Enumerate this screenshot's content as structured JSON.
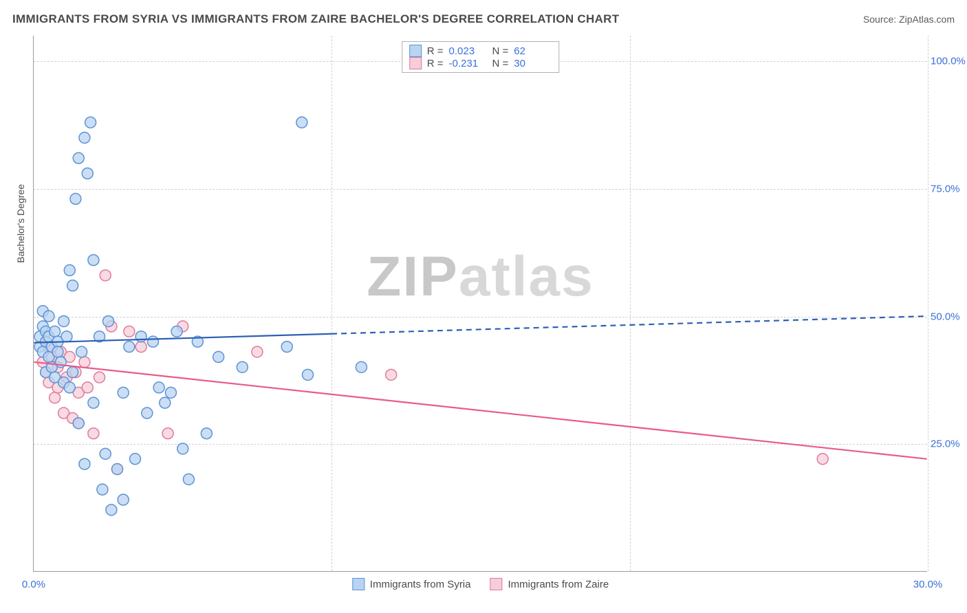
{
  "header": {
    "title": "IMMIGRANTS FROM SYRIA VS IMMIGRANTS FROM ZAIRE BACHELOR'S DEGREE CORRELATION CHART",
    "source": "Source: ZipAtlas.com"
  },
  "chart": {
    "type": "scatter",
    "ylabel": "Bachelor's Degree",
    "xlim": [
      0,
      30
    ],
    "ylim": [
      0,
      105
    ],
    "xticks": [
      {
        "pos": 0,
        "label": "0.0%"
      },
      {
        "pos": 10,
        "label": ""
      },
      {
        "pos": 20,
        "label": ""
      },
      {
        "pos": 30,
        "label": "30.0%"
      }
    ],
    "yticks": [
      {
        "pos": 25,
        "label": "25.0%"
      },
      {
        "pos": 50,
        "label": "50.0%"
      },
      {
        "pos": 75,
        "label": "75.0%"
      },
      {
        "pos": 100,
        "label": "100.0%"
      }
    ],
    "grid_color": "#d0d0d0",
    "background_color": "#ffffff",
    "marker_radius": 8,
    "marker_stroke_width": 1.5,
    "series": {
      "syria": {
        "label": "Immigrants from Syria",
        "fill": "#b9d3f0",
        "stroke": "#5a93d6",
        "stats": {
          "R": "0.023",
          "N": "62"
        },
        "points": [
          [
            0.2,
            44
          ],
          [
            0.2,
            46
          ],
          [
            0.3,
            43
          ],
          [
            0.3,
            48
          ],
          [
            0.3,
            51
          ],
          [
            0.4,
            39
          ],
          [
            0.4,
            45
          ],
          [
            0.4,
            47
          ],
          [
            0.5,
            42
          ],
          [
            0.5,
            46
          ],
          [
            0.5,
            50
          ],
          [
            0.6,
            40
          ],
          [
            0.6,
            44
          ],
          [
            0.7,
            38
          ],
          [
            0.7,
            47
          ],
          [
            0.8,
            45
          ],
          [
            0.8,
            43
          ],
          [
            0.9,
            41
          ],
          [
            1.0,
            37
          ],
          [
            1.0,
            49
          ],
          [
            1.1,
            46
          ],
          [
            1.2,
            36
          ],
          [
            1.2,
            59
          ],
          [
            1.3,
            39
          ],
          [
            1.3,
            56
          ],
          [
            1.4,
            73
          ],
          [
            1.5,
            29
          ],
          [
            1.5,
            81
          ],
          [
            1.6,
            43
          ],
          [
            1.7,
            21
          ],
          [
            1.7,
            85
          ],
          [
            1.8,
            78
          ],
          [
            1.9,
            88
          ],
          [
            2.0,
            33
          ],
          [
            2.0,
            61
          ],
          [
            2.2,
            46
          ],
          [
            2.3,
            16
          ],
          [
            2.4,
            23
          ],
          [
            2.5,
            49
          ],
          [
            2.6,
            12
          ],
          [
            2.8,
            20
          ],
          [
            3.0,
            35
          ],
          [
            3.0,
            14
          ],
          [
            3.2,
            44
          ],
          [
            3.4,
            22
          ],
          [
            3.6,
            46
          ],
          [
            3.8,
            31
          ],
          [
            4.0,
            45
          ],
          [
            4.2,
            36
          ],
          [
            4.4,
            33
          ],
          [
            4.6,
            35
          ],
          [
            4.8,
            47
          ],
          [
            5.0,
            24
          ],
          [
            5.2,
            18
          ],
          [
            5.5,
            45
          ],
          [
            5.8,
            27
          ],
          [
            6.2,
            42
          ],
          [
            7.0,
            40
          ],
          [
            8.5,
            44
          ],
          [
            9.0,
            88
          ],
          [
            9.2,
            38.5
          ],
          [
            11.0,
            40
          ]
        ],
        "trend": {
          "x1": 0,
          "y1": 44.8,
          "x2": 30,
          "y2": 50,
          "solid_until_x": 10,
          "color": "#2d5fb3",
          "width": 2.2
        }
      },
      "zaire": {
        "label": "Immigrants from Zaire",
        "fill": "#f6cdd8",
        "stroke": "#e07a9a",
        "stats": {
          "R": "-0.231",
          "N": "30"
        },
        "points": [
          [
            0.3,
            41
          ],
          [
            0.4,
            39
          ],
          [
            0.5,
            44
          ],
          [
            0.5,
            37
          ],
          [
            0.6,
            42
          ],
          [
            0.7,
            34
          ],
          [
            0.8,
            40
          ],
          [
            0.8,
            36
          ],
          [
            0.9,
            43
          ],
          [
            1.0,
            31
          ],
          [
            1.1,
            38
          ],
          [
            1.2,
            42
          ],
          [
            1.3,
            30
          ],
          [
            1.4,
            39
          ],
          [
            1.5,
            35
          ],
          [
            1.5,
            29
          ],
          [
            1.7,
            41
          ],
          [
            1.8,
            36
          ],
          [
            2.0,
            27
          ],
          [
            2.2,
            38
          ],
          [
            2.4,
            58
          ],
          [
            2.6,
            48
          ],
          [
            2.8,
            20
          ],
          [
            3.2,
            47
          ],
          [
            3.6,
            44
          ],
          [
            4.5,
            27
          ],
          [
            5.0,
            48
          ],
          [
            7.5,
            43
          ],
          [
            12.0,
            38.5
          ],
          [
            26.5,
            22
          ]
        ],
        "trend": {
          "x1": 0,
          "y1": 41,
          "x2": 30,
          "y2": 22,
          "solid_until_x": 30,
          "color": "#e85a8b",
          "width": 2.2
        }
      }
    },
    "watermark": {
      "part1": "ZIP",
      "part2": "atlas"
    }
  },
  "legend_top": {
    "r_label": "R =",
    "n_label": "N ="
  }
}
